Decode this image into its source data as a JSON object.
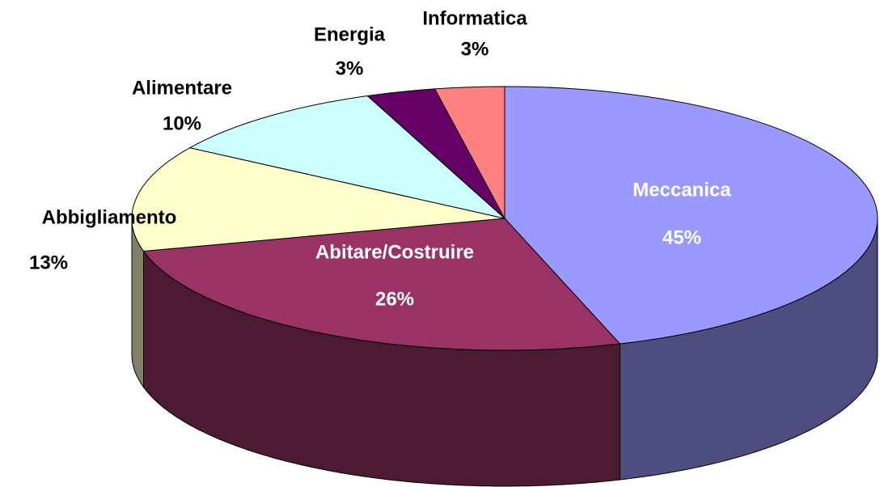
{
  "chart_data": {
    "type": "pie3d",
    "categories": [
      "Meccanica",
      "Abitare/Costruire",
      "Abbigliamento",
      "Alimentare",
      "Energia",
      "Informatica"
    ],
    "values": [
      45,
      26,
      13,
      10,
      3,
      3
    ],
    "value_labels": [
      "45%",
      "26%",
      "13%",
      "10%",
      "3%",
      "3%"
    ],
    "colors": [
      "#9999ff",
      "#993366",
      "#ffffcc",
      "#ccffff",
      "#660066",
      "#ff8080"
    ]
  }
}
